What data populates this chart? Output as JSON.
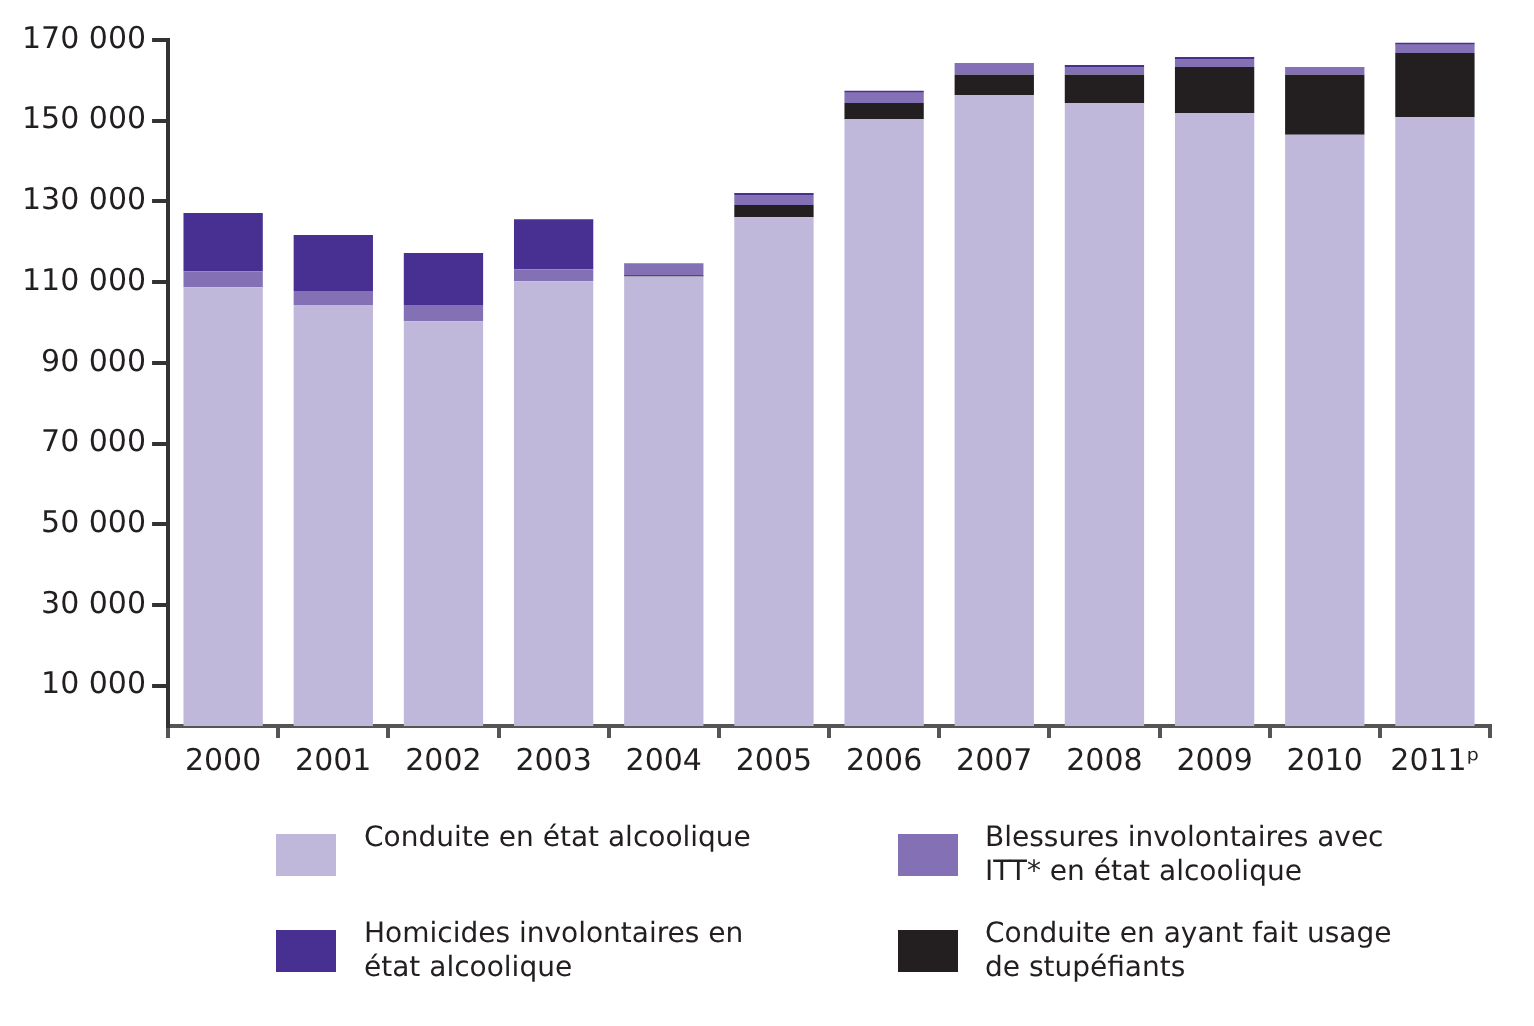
{
  "chart_data": {
    "type": "bar",
    "stacked": true,
    "categories": [
      "2000",
      "2001",
      "2002",
      "2003",
      "2004",
      "2005",
      "2006",
      "2007",
      "2008",
      "2009",
      "2010",
      "2011ᵖ"
    ],
    "series": [
      {
        "name": "Conduite en état alcoolique",
        "color": "#c0b8da",
        "values": [
          108700,
          104300,
          100300,
          110200,
          111400,
          126100,
          150400,
          156400,
          154400,
          151900,
          146500,
          150900
        ]
      },
      {
        "name": "Conduite en ayant fait usage de stupéfiants",
        "color": "#231f20",
        "values": [
          0,
          0,
          0,
          0,
          300,
          3000,
          4000,
          5000,
          7000,
          11400,
          14900,
          15900
        ]
      },
      {
        "name": "Blessures involontaires avec ITT* en état alcoolique",
        "color": "#8470b4",
        "values": [
          4000,
          3500,
          4000,
          3000,
          3000,
          2500,
          2500,
          2900,
          1900,
          2000,
          1900,
          2000
        ]
      },
      {
        "name": "Homicides involontaires en état alcoolique",
        "color": "#482f92",
        "values": [
          14400,
          13900,
          12900,
          12400,
          0,
          500,
          500,
          0,
          500,
          500,
          0,
          500
        ]
      }
    ],
    "ylim": [
      0,
      170000
    ],
    "yticks": [
      {
        "value": 10000,
        "label": "10 000"
      },
      {
        "value": 30000,
        "label": "30 000"
      },
      {
        "value": 50000,
        "label": "50 000"
      },
      {
        "value": 70000,
        "label": "70 000"
      },
      {
        "value": 90000,
        "label": "90 000"
      },
      {
        "value": 110000,
        "label": "110 000"
      },
      {
        "value": 130000,
        "label": "130 000"
      },
      {
        "value": 150000,
        "label": "150 000"
      },
      {
        "value": 170000,
        "label": "170 000"
      }
    ],
    "grid": false,
    "legend": "bottom"
  }
}
